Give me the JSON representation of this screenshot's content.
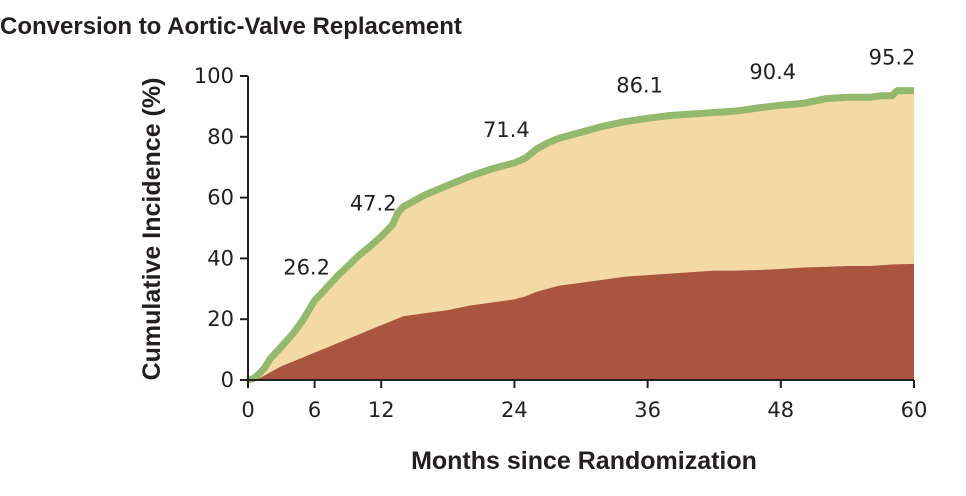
{
  "chart_data": {
    "type": "area",
    "title": "Conversion to Aortic-Valve Replacement",
    "xlabel": "Months since Randomization",
    "ylabel": "Cumulative Incidence (%)",
    "xlim": [
      0,
      60
    ],
    "ylim": [
      0,
      100
    ],
    "xticks": [
      0,
      6,
      12,
      24,
      36,
      48,
      60
    ],
    "yticks": [
      0,
      20,
      40,
      60,
      80,
      100
    ],
    "grid": false,
    "legend": "none",
    "series": [
      {
        "color": "#a9553f",
        "x": [
          0,
          1,
          2,
          3,
          4,
          5,
          6,
          7,
          8,
          9,
          10,
          11,
          12,
          13,
          14,
          16,
          18,
          20,
          22,
          24,
          25,
          26,
          27,
          28,
          30,
          32,
          34,
          36,
          38,
          40,
          42,
          44,
          46,
          48,
          50,
          52,
          54,
          56,
          58,
          60
        ],
        "y": [
          0,
          0.5,
          2.5,
          4.5,
          6,
          7.5,
          9,
          10.5,
          12,
          13.5,
          15,
          16.5,
          18,
          19.5,
          21,
          22,
          23,
          24.5,
          25.5,
          26.5,
          27.5,
          29,
          30,
          31,
          32,
          33,
          34,
          34.5,
          35,
          35.5,
          36,
          36,
          36.2,
          36.5,
          37,
          37.2,
          37.5,
          37.5,
          38,
          38.2
        ]
      },
      {
        "color": "#f3d9a4",
        "x": [
          0,
          0.5,
          1,
          1.5,
          2,
          3,
          4,
          5,
          6,
          7,
          8,
          9,
          10,
          11,
          12,
          13,
          13.5,
          14,
          15,
          16,
          18,
          20,
          22,
          24,
          25,
          26,
          27,
          28,
          30,
          32,
          34,
          36,
          38,
          40,
          42,
          44,
          46,
          48,
          50,
          52,
          54,
          56,
          57,
          58,
          58.5,
          60
        ],
        "y": [
          0,
          0.5,
          2,
          4,
          7,
          11,
          15,
          20,
          26.2,
          30,
          34,
          37.5,
          41,
          44,
          47.2,
          51,
          55,
          57,
          59,
          61,
          64,
          67,
          69.5,
          71.4,
          73,
          76,
          78,
          79.5,
          81.5,
          83.5,
          85,
          86.1,
          87,
          87.5,
          88,
          88.5,
          89.5,
          90.4,
          91,
          92.5,
          93,
          93,
          93.5,
          93.5,
          95.2,
          95.2
        ]
      }
    ],
    "data_labels": [
      {
        "x": 6,
        "y": 26.2,
        "text": "26.2"
      },
      {
        "x": 12,
        "y": 47.2,
        "text": "47.2"
      },
      {
        "x": 24,
        "y": 71.4,
        "text": "71.4"
      },
      {
        "x": 36,
        "y": 86.1,
        "text": "86.1"
      },
      {
        "x": 48,
        "y": 90.4,
        "text": "90.4"
      },
      {
        "x": 60,
        "y": 95.2,
        "text": "95.2"
      }
    ],
    "curve_color": "#93b96c"
  }
}
